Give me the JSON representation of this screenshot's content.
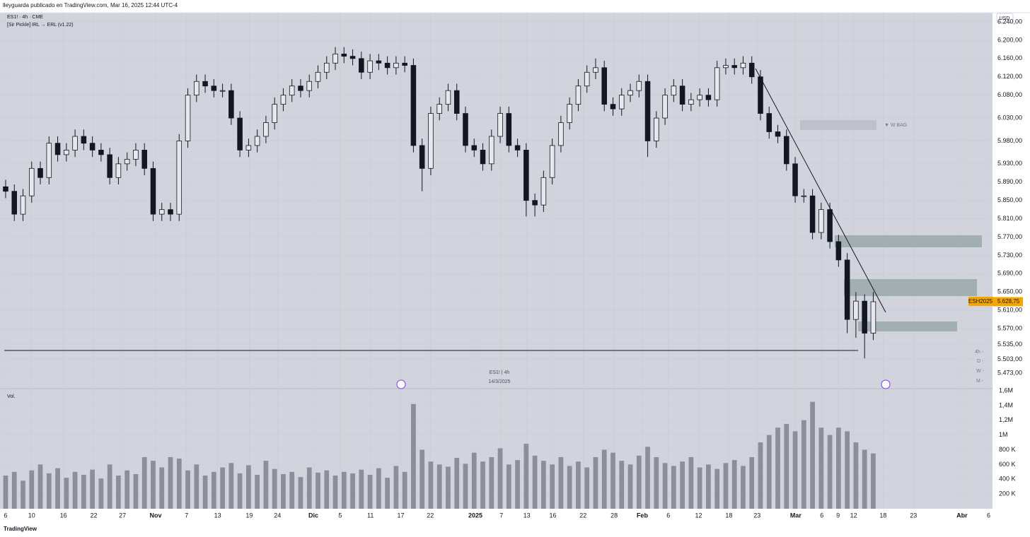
{
  "header": "lleyguarda publicado en TradingView.com, Mar 16, 2025 12:44 UTC-4",
  "footer": "TradingView",
  "chart_data": {
    "type": "candlestick",
    "legend": [
      "ES1! · 4h · CME",
      "[Sir Pickle] IRL → ERL (v1.22)"
    ],
    "currency": "USD",
    "zone_label": "▼ W BAG",
    "crosshair_label": "ES1!  |  4h",
    "crosshair_date": "14/3/2025",
    "volume_label": "Vol.",
    "timeframes": [
      "4h  -",
      "D  -",
      "W  -",
      "M  -"
    ],
    "last_symbol": "ESH2025",
    "last_price": {
      "value": 5628.75,
      "label": "5.628,75"
    },
    "grid": true,
    "color": "#131722",
    "volume_color": "#8c8f99",
    "open": [
      5880,
      5870,
      5820,
      5860,
      5920,
      5900,
      5975,
      5950,
      5960,
      5990,
      5975,
      5960,
      5950,
      5900,
      5930,
      5940,
      5960,
      5920,
      5820,
      5830,
      5820,
      5980,
      6080,
      6110,
      6100,
      6090,
      6090,
      6030,
      5960,
      5970,
      5990,
      6020,
      6060,
      6080,
      6100,
      6090,
      6110,
      6130,
      6150,
      6170,
      6165,
      6160,
      6130,
      6155,
      6150,
      6140,
      6150,
      6145,
      5970,
      5920,
      6040,
      6060,
      6090,
      6040,
      5970,
      5960,
      5930,
      5990,
      6040,
      5970,
      5960,
      5850,
      5840,
      5900,
      5970,
      6020,
      6060,
      6100,
      6130,
      6140,
      6060,
      6050,
      6080,
      6090,
      6110,
      5980,
      6030,
      6080,
      6100,
      6060,
      6070,
      6080,
      6070,
      6140,
      6145,
      6140,
      6150,
      6120,
      6040,
      6000,
      5990,
      5930,
      5860,
      5860,
      5780,
      5830,
      5760,
      5720,
      5590,
      5630,
      5560
    ],
    "high": [
      5895,
      5885,
      5875,
      5935,
      5935,
      5990,
      5990,
      5975,
      6005,
      6005,
      5990,
      5975,
      5965,
      5945,
      5955,
      5975,
      5975,
      5935,
      5845,
      5845,
      5995,
      6095,
      6125,
      6125,
      6115,
      6105,
      6105,
      6045,
      5985,
      6005,
      6035,
      6075,
      6095,
      6115,
      6115,
      6125,
      6145,
      6165,
      6185,
      6185,
      6180,
      6175,
      6170,
      6170,
      6165,
      6165,
      6165,
      6160,
      5985,
      6055,
      6075,
      6105,
      6105,
      6055,
      5985,
      5975,
      6005,
      6055,
      6055,
      5985,
      5975,
      5865,
      5915,
      5985,
      6035,
      6075,
      6115,
      6145,
      6160,
      6155,
      6075,
      6095,
      6105,
      6125,
      6125,
      6045,
      6095,
      6115,
      6115,
      6085,
      6095,
      6095,
      6155,
      6160,
      6160,
      6165,
      6165,
      6135,
      6055,
      6015,
      6005,
      5945,
      5875,
      5875,
      5845,
      5845,
      5775,
      5735,
      5650,
      5645,
      5650
    ],
    "low": [
      5855,
      5805,
      5805,
      5845,
      5885,
      5885,
      5935,
      5935,
      5945,
      5960,
      5945,
      5935,
      5885,
      5885,
      5915,
      5925,
      5905,
      5805,
      5805,
      5805,
      5805,
      5965,
      6065,
      6085,
      6075,
      6075,
      6015,
      5945,
      5945,
      5955,
      5975,
      6005,
      6045,
      6065,
      6075,
      6075,
      6095,
      6115,
      6135,
      6150,
      6145,
      6115,
      6115,
      6135,
      6125,
      6125,
      6130,
      5955,
      5870,
      5905,
      6025,
      6045,
      6025,
      5955,
      5945,
      5915,
      5915,
      5975,
      5955,
      5945,
      5815,
      5815,
      5825,
      5885,
      5955,
      6005,
      6045,
      6085,
      6115,
      6045,
      6035,
      6035,
      6065,
      6075,
      5945,
      5965,
      6015,
      6065,
      6045,
      6045,
      6055,
      6055,
      6055,
      6125,
      6125,
      6125,
      6105,
      6025,
      5985,
      5975,
      5915,
      5845,
      5845,
      5765,
      5765,
      5745,
      5705,
      5560,
      5550,
      5505,
      5545
    ],
    "close": [
      5870,
      5820,
      5860,
      5920,
      5900,
      5975,
      5950,
      5960,
      5990,
      5975,
      5960,
      5950,
      5900,
      5930,
      5940,
      5960,
      5920,
      5820,
      5830,
      5820,
      5980,
      6080,
      6110,
      6100,
      6090,
      6090,
      6030,
      5960,
      5970,
      5990,
      6020,
      6060,
      6080,
      6100,
      6090,
      6110,
      6130,
      6150,
      6170,
      6165,
      6160,
      6130,
      6155,
      6150,
      6140,
      6150,
      6145,
      5970,
      5920,
      6040,
      6060,
      6090,
      6040,
      5970,
      5960,
      5930,
      5990,
      6040,
      5970,
      5960,
      5850,
      5840,
      5900,
      5970,
      6020,
      6060,
      6100,
      6130,
      6140,
      6060,
      6050,
      6080,
      6090,
      6110,
      5980,
      6030,
      6080,
      6100,
      6060,
      6070,
      6080,
      6070,
      6140,
      6145,
      6140,
      6150,
      6120,
      6040,
      6000,
      5990,
      5930,
      5860,
      5860,
      5780,
      5830,
      5760,
      5720,
      5590,
      5630,
      5560,
      5628.75
    ],
    "volume": [
      450000,
      500000,
      380000,
      520000,
      600000,
      480000,
      550000,
      420000,
      500000,
      460000,
      530000,
      410000,
      600000,
      450000,
      520000,
      470000,
      700000,
      650000,
      560000,
      700000,
      680000,
      520000,
      600000,
      450000,
      500000,
      560000,
      620000,
      480000,
      590000,
      460000,
      650000,
      540000,
      470000,
      500000,
      430000,
      560000,
      490000,
      520000,
      450000,
      500000,
      480000,
      530000,
      460000,
      550000,
      420000,
      580000,
      500000,
      1420000,
      800000,
      640000,
      600000,
      570000,
      690000,
      610000,
      760000,
      640000,
      700000,
      820000,
      600000,
      660000,
      880000,
      720000,
      650000,
      600000,
      700000,
      580000,
      640000,
      560000,
      700000,
      800000,
      760000,
      650000,
      600000,
      720000,
      840000,
      700000,
      620000,
      580000,
      640000,
      700000,
      560000,
      600000,
      540000,
      620000,
      660000,
      580000,
      700000,
      900000,
      1000000,
      1100000,
      1150000,
      1050000,
      1200000,
      1450000,
      1100000,
      1000000,
      1100000,
      1050000,
      900000,
      800000,
      750000
    ],
    "xlim": [
      -0.65,
      113.5
    ],
    "xticks": [
      {
        "value": 0,
        "label": "6"
      },
      {
        "value": 3,
        "label": "10"
      },
      {
        "value": 6.66,
        "label": "16"
      },
      {
        "value": 10.15,
        "label": "22"
      },
      {
        "value": 13.47,
        "label": "27"
      },
      {
        "value": 17.29,
        "label": "Nov"
      },
      {
        "value": 20.86,
        "label": "7"
      },
      {
        "value": 24.43,
        "label": "13"
      },
      {
        "value": 28.08,
        "label": "19"
      },
      {
        "value": 31.33,
        "label": "24"
      },
      {
        "value": 35.47,
        "label": "Dic"
      },
      {
        "value": 38.56,
        "label": "5"
      },
      {
        "value": 42.05,
        "label": "11"
      },
      {
        "value": 45.54,
        "label": "17"
      },
      {
        "value": 48.94,
        "label": "22"
      },
      {
        "value": 54.14,
        "label": "2025"
      },
      {
        "value": 57.14,
        "label": "7"
      },
      {
        "value": 60.06,
        "label": "13"
      },
      {
        "value": 63.07,
        "label": "16"
      },
      {
        "value": 66.56,
        "label": "22"
      },
      {
        "value": 70.13,
        "label": "28"
      },
      {
        "value": 73.38,
        "label": "Feb"
      },
      {
        "value": 76.38,
        "label": "6"
      },
      {
        "value": 79.87,
        "label": "12"
      },
      {
        "value": 83.36,
        "label": "18"
      },
      {
        "value": 86.61,
        "label": "23"
      },
      {
        "value": 91.07,
        "label": "Mar"
      },
      {
        "value": 94.07,
        "label": "6"
      },
      {
        "value": 95.94,
        "label": "9"
      },
      {
        "value": 97.73,
        "label": "12"
      },
      {
        "value": 101.14,
        "label": "18"
      },
      {
        "value": 104.63,
        "label": "23"
      },
      {
        "value": 110.23,
        "label": "Abr"
      },
      {
        "value": 113.3,
        "label": "6"
      }
    ],
    "ylim": [
      5442,
      6257
    ],
    "yticks": [
      {
        "value": 6240,
        "label": "6.240,00"
      },
      {
        "value": 6200,
        "label": "6.200,00"
      },
      {
        "value": 6160,
        "label": "6.160,00"
      },
      {
        "value": 6120,
        "label": "6.120,00"
      },
      {
        "value": 6080,
        "label": "6.080,00"
      },
      {
        "value": 6030,
        "label": "6.030,00"
      },
      {
        "value": 5980,
        "label": "5.980,00"
      },
      {
        "value": 5930,
        "label": "5.930,00"
      },
      {
        "value": 5890,
        "label": "5.890,00"
      },
      {
        "value": 5850,
        "label": "5.850,00"
      },
      {
        "value": 5810,
        "label": "5.810,00"
      },
      {
        "value": 5770,
        "label": "5.770,00"
      },
      {
        "value": 5730,
        "label": "5.730,00"
      },
      {
        "value": 5690,
        "label": "5.690,00"
      },
      {
        "value": 5650,
        "label": "5.650,00"
      },
      {
        "value": 5610,
        "label": "5.610,00"
      },
      {
        "value": 5570,
        "label": "5.570,00"
      },
      {
        "value": 5535,
        "label": "5.535,00"
      },
      {
        "value": 5503,
        "label": "5.503,00"
      },
      {
        "value": 5473,
        "label": "5.473,00"
      }
    ],
    "y2lim": [
      0,
      1600000
    ],
    "y2ticks": [
      {
        "value": 1600000,
        "label": "1,6M"
      },
      {
        "value": 1400000,
        "label": "1,4M"
      },
      {
        "value": 1200000,
        "label": "1,2M"
      },
      {
        "value": 1000000,
        "label": "1M"
      },
      {
        "value": 800000,
        "label": "800 K"
      },
      {
        "value": 600000,
        "label": "600 K"
      },
      {
        "value": 400000,
        "label": "400 K"
      },
      {
        "value": 200000,
        "label": "200 K"
      }
    ]
  }
}
